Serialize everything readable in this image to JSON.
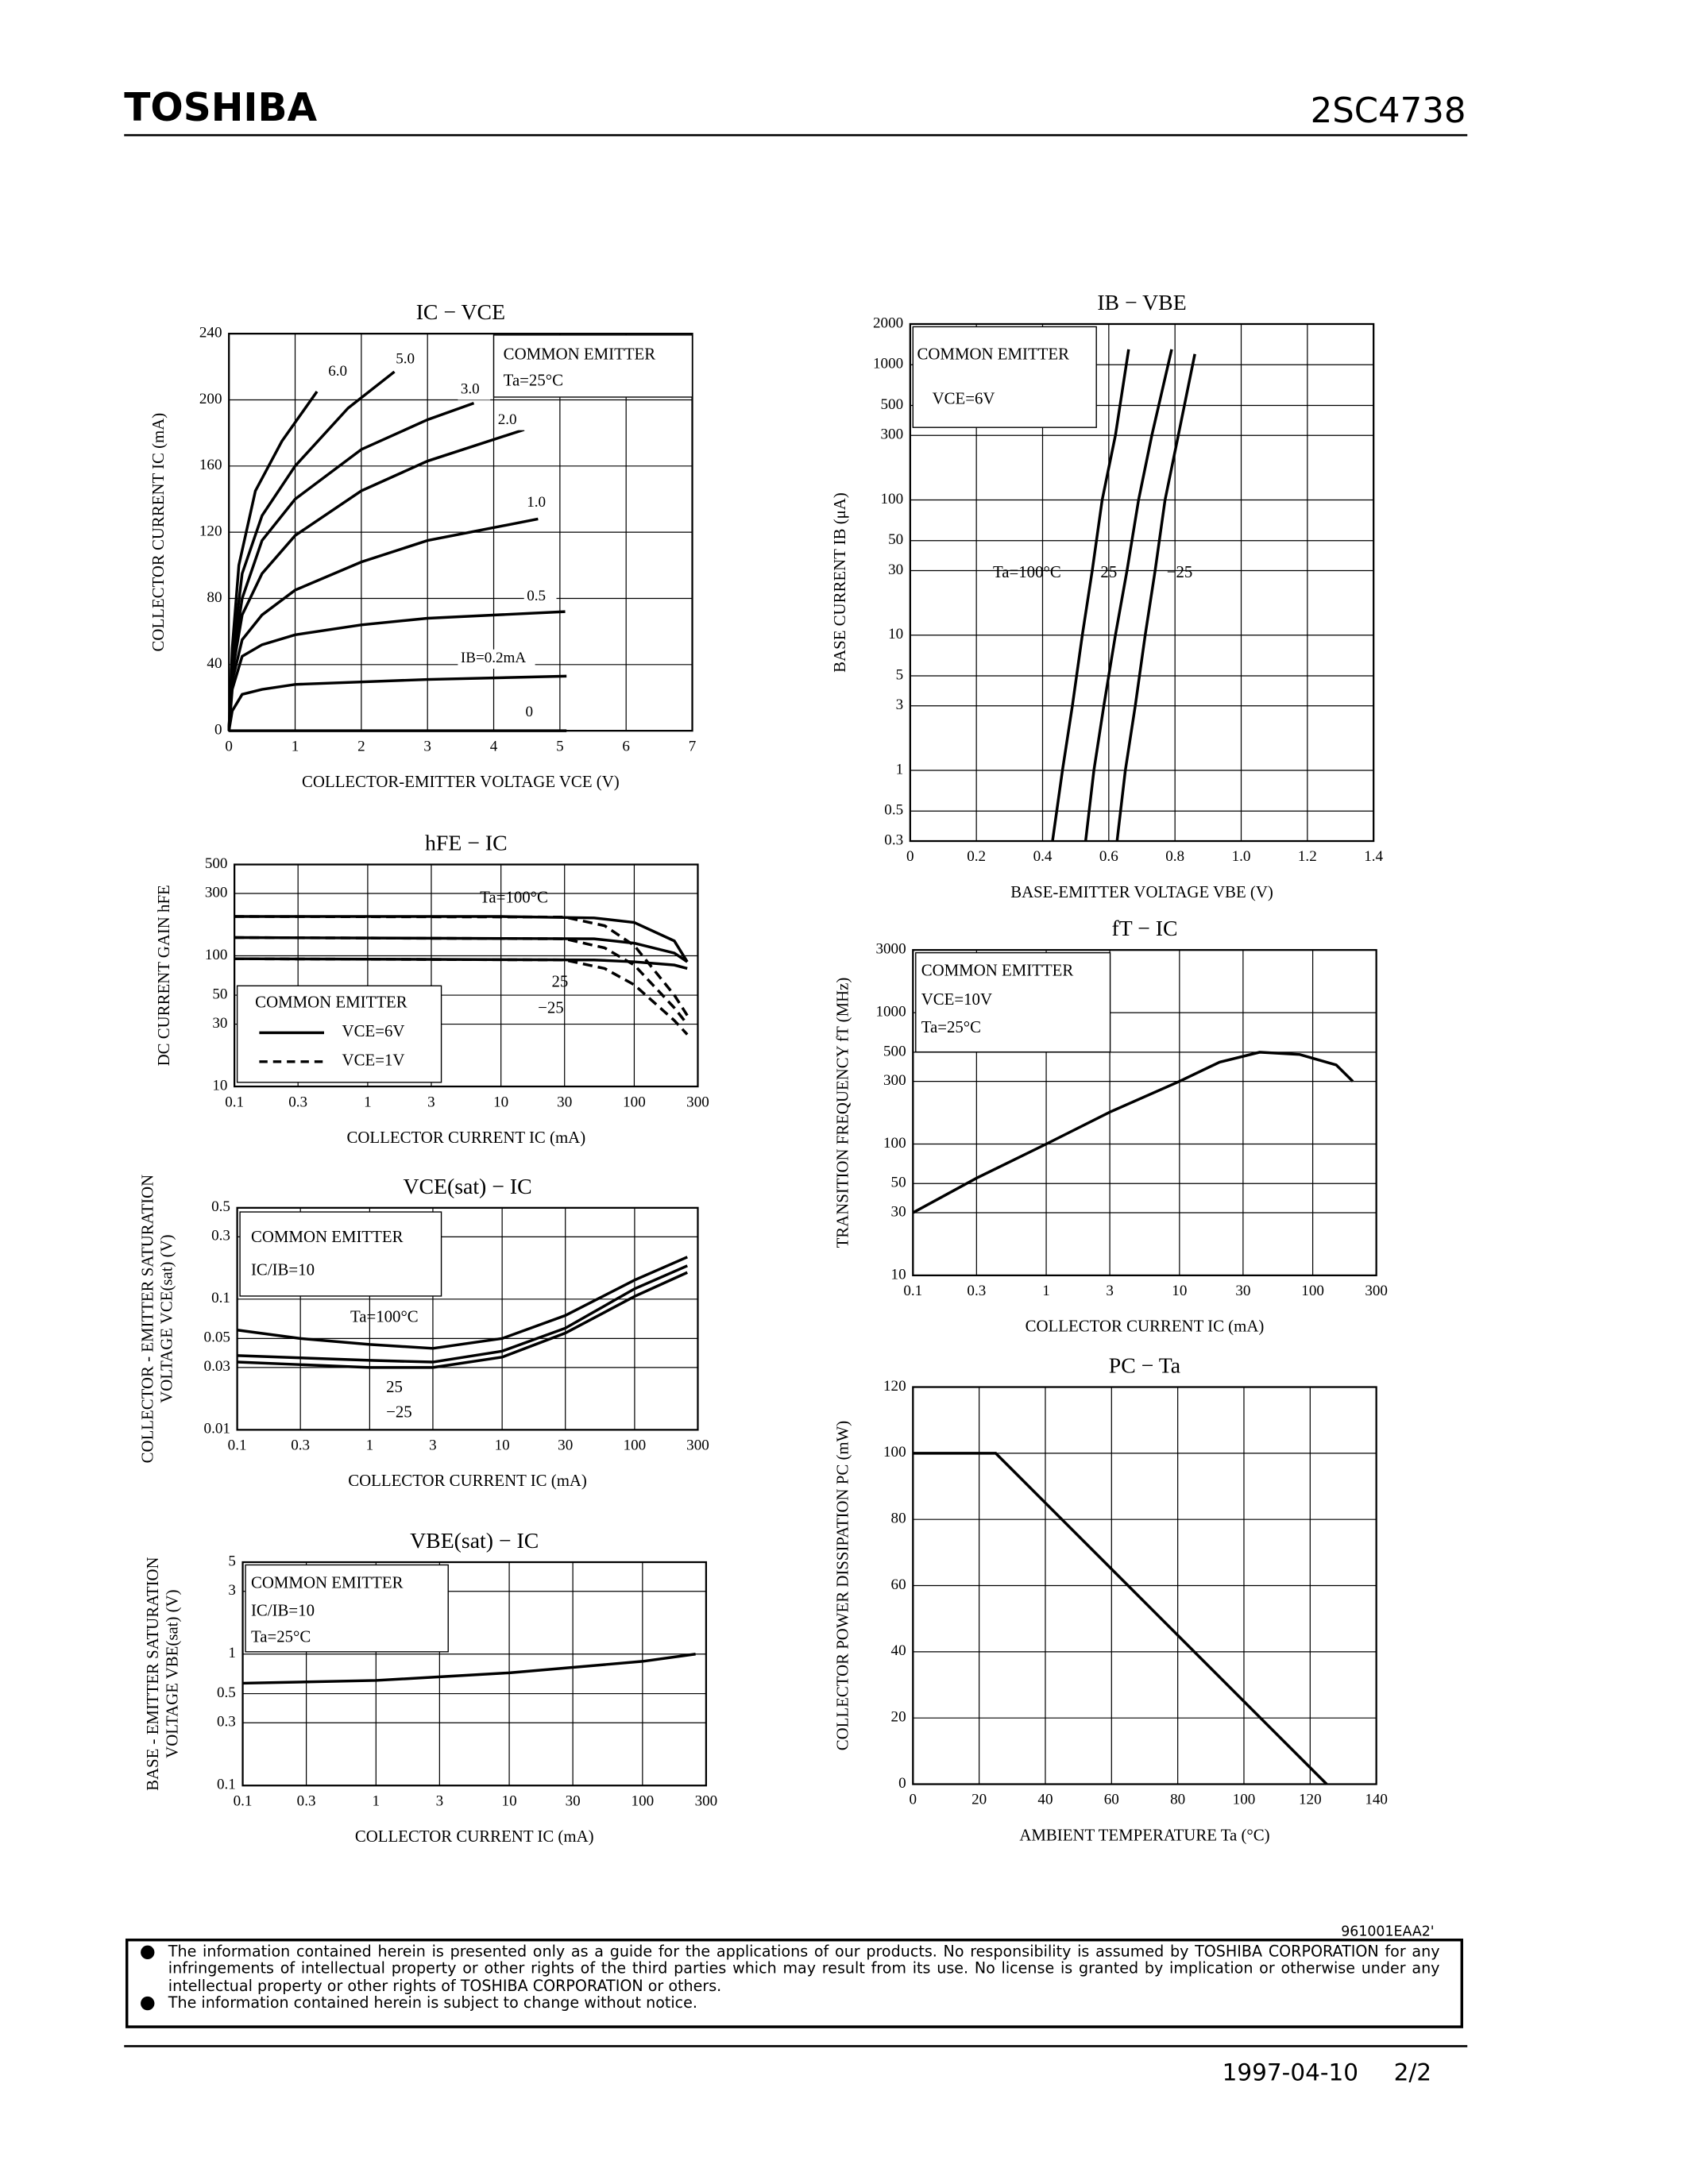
{
  "header": {
    "brand": "TOSHIBA",
    "part": "2SC4738"
  },
  "chart_data": [
    {
      "type": "line",
      "title": "IC − VCE",
      "xlabel": "COLLECTOR-EMITTER VOLTAGE   VCE   (V)",
      "ylabel": [
        "COLLECTOR CURRENT   IC   (mA)"
      ],
      "xlim": [
        0,
        7
      ],
      "ylim": [
        0,
        240
      ],
      "xticks": [
        0,
        1,
        2,
        3,
        4,
        5,
        6,
        7
      ],
      "yticks": [
        0,
        40,
        80,
        120,
        160,
        200,
        240
      ],
      "grid": true,
      "color": "#000000",
      "annotations": [
        "COMMON EMITTER",
        "Ta=25°C"
      ],
      "series": [
        {
          "name": "6.0",
          "x": [
            0,
            0.05,
            0.15,
            0.4,
            0.8,
            1.33
          ],
          "values": [
            0,
            50,
            100,
            145,
            175,
            205
          ]
        },
        {
          "name": "5.0",
          "x": [
            0,
            0.05,
            0.2,
            0.5,
            1,
            1.8,
            2.5
          ],
          "values": [
            0,
            45,
            95,
            130,
            160,
            195,
            217
          ]
        },
        {
          "name": "3.0",
          "x": [
            0,
            0.05,
            0.2,
            0.5,
            1,
            2,
            3,
            3.7
          ],
          "values": [
            0,
            40,
            80,
            115,
            140,
            170,
            188,
            198
          ]
        },
        {
          "name": "2.0",
          "x": [
            0,
            0.05,
            0.2,
            0.5,
            1,
            2,
            3,
            4.46
          ],
          "values": [
            0,
            35,
            70,
            95,
            118,
            145,
            163,
            182
          ]
        },
        {
          "name": "1.0",
          "x": [
            0,
            0.05,
            0.2,
            0.5,
            1,
            2,
            3,
            4.67
          ],
          "values": [
            0,
            30,
            55,
            70,
            85,
            102,
            115,
            128
          ]
        },
        {
          "name": "0.5",
          "x": [
            0,
            0.05,
            0.2,
            0.5,
            1,
            2,
            3,
            5.08
          ],
          "values": [
            0,
            25,
            45,
            52,
            58,
            64,
            68,
            72
          ]
        },
        {
          "name": "IB=0.2mA",
          "x": [
            0,
            0.05,
            0.2,
            0.5,
            1,
            3,
            5.1
          ],
          "values": [
            0,
            12,
            22,
            25,
            28,
            31,
            33
          ]
        },
        {
          "name": "0",
          "x": [
            0,
            5.1
          ],
          "values": [
            0,
            0
          ]
        }
      ]
    },
    {
      "type": "line",
      "title": "hFE − IC",
      "xlabel": "COLLECTOR CURRENT   IC   (mA)",
      "ylabel": [
        "DC CURRENT GAIN  hFE"
      ],
      "xscale": "log",
      "yscale": "log",
      "xlim": [
        0.1,
        300
      ],
      "ylim": [
        10,
        500
      ],
      "xticks": [
        0.1,
        0.3,
        1,
        3,
        10,
        30,
        100,
        300
      ],
      "yticks": [
        10,
        30,
        50,
        100,
        300,
        500
      ],
      "grid": true,
      "color": "#000000",
      "annotations": [
        "Ta=100°C",
        "25",
        "−25",
        "COMMON EMITTER"
      ],
      "legend": [
        {
          "label": "VCE=6V",
          "dash": false
        },
        {
          "label": "VCE=1V",
          "dash": true
        }
      ],
      "series": [
        {
          "dash": false,
          "x": [
            0.1,
            10,
            50,
            100,
            200,
            250
          ],
          "values": [
            200,
            200,
            195,
            180,
            130,
            90
          ]
        },
        {
          "dash": false,
          "x": [
            0.1,
            50,
            100,
            200,
            250
          ],
          "values": [
            138,
            135,
            125,
            105,
            90
          ]
        },
        {
          "dash": false,
          "x": [
            0.1,
            50,
            100,
            200,
            250
          ],
          "values": [
            95,
            93,
            90,
            85,
            80
          ]
        },
        {
          "dash": true,
          "x": [
            0.1,
            30,
            60,
            100,
            200,
            250
          ],
          "values": [
            200,
            198,
            170,
            120,
            50,
            35
          ]
        },
        {
          "dash": true,
          "x": [
            0.1,
            30,
            60,
            100,
            200,
            250
          ],
          "values": [
            138,
            135,
            115,
            85,
            40,
            30
          ]
        },
        {
          "dash": true,
          "x": [
            0.1,
            30,
            60,
            100,
            200,
            250
          ],
          "values": [
            95,
            93,
            80,
            60,
            32,
            25
          ]
        }
      ]
    },
    {
      "type": "line",
      "title": "VCE(sat) − IC",
      "xlabel": "COLLECTOR CURRENT   IC   (mA)",
      "ylabel": [
        "COLLECTOR - EMITTER SATURATION",
        "VOLTAGE   VCE(sat)   (V)"
      ],
      "xscale": "log",
      "yscale": "log",
      "xlim": [
        0.1,
        300
      ],
      "ylim": [
        0.01,
        0.5
      ],
      "xticks": [
        0.1,
        0.3,
        1,
        3,
        10,
        30,
        100,
        300
      ],
      "yticks": [
        0.01,
        0.03,
        0.05,
        0.1,
        0.3,
        0.5
      ],
      "grid": true,
      "color": "#000000",
      "annotations": [
        "COMMON EMITTER",
        "IC/IB=10",
        "Ta=100°C",
        "25",
        "−25"
      ],
      "series": [
        {
          "x": [
            0.1,
            0.3,
            1,
            3,
            10,
            30,
            100,
            250
          ],
          "values": [
            0.058,
            0.05,
            0.045,
            0.042,
            0.05,
            0.075,
            0.14,
            0.21
          ]
        },
        {
          "x": [
            0.1,
            1,
            3,
            10,
            30,
            100,
            250
          ],
          "values": [
            0.037,
            0.034,
            0.033,
            0.04,
            0.06,
            0.12,
            0.18
          ]
        },
        {
          "x": [
            0.1,
            1,
            3,
            10,
            30,
            100,
            250
          ],
          "values": [
            0.033,
            0.03,
            0.03,
            0.036,
            0.055,
            0.105,
            0.16
          ]
        }
      ]
    },
    {
      "type": "line",
      "title": "VBE(sat) − IC",
      "xlabel": "COLLECTOR CURRENT   IC   (mA)",
      "ylabel": [
        "BASE - EMITTER SATURATION",
        "VOLTAGE   VBE(sat)   (V)"
      ],
      "xscale": "log",
      "yscale": "log",
      "xlim": [
        0.1,
        300
      ],
      "ylim": [
        0.1,
        5
      ],
      "xticks": [
        0.1,
        0.3,
        1,
        3,
        10,
        30,
        100,
        300
      ],
      "yticks": [
        0.1,
        0.3,
        0.5,
        1,
        3,
        5
      ],
      "grid": true,
      "color": "#000000",
      "annotations": [
        "COMMON EMITTER",
        "IC/IB=10",
        "Ta=25°C"
      ],
      "series": [
        {
          "x": [
            0.1,
            1,
            10,
            100,
            250
          ],
          "values": [
            0.6,
            0.63,
            0.72,
            0.88,
            1.0
          ]
        }
      ]
    },
    {
      "type": "line",
      "title": "IB − VBE",
      "xlabel": "BASE-EMITTER VOLTAGE   VBE   (V)",
      "ylabel": [
        "BASE CURRENT   IB   (μA)"
      ],
      "yscale": "log",
      "xlim": [
        0,
        1.4
      ],
      "ylim": [
        0.3,
        2000
      ],
      "xticks": [
        0,
        0.2,
        0.4,
        0.6,
        0.8,
        {
          "value": 1,
          "label": "1.0"
        },
        1.2,
        1.4
      ],
      "yticks": [
        0.3,
        0.5,
        1,
        3,
        5,
        10,
        30,
        50,
        100,
        300,
        500,
        1000,
        2000
      ],
      "grid": true,
      "color": "#000000",
      "annotations": [
        "COMMON EMITTER",
        "VCE=6V",
        "Ta=100°C",
        "25",
        "−25"
      ],
      "series": [
        {
          "x": [
            0.43,
            0.46,
            0.49,
            0.52,
            0.55,
            0.58,
            0.62,
            0.66
          ],
          "values": [
            0.3,
            1,
            3,
            10,
            30,
            100,
            300,
            1300
          ]
        },
        {
          "x": [
            0.53,
            0.555,
            0.585,
            0.62,
            0.655,
            0.69,
            0.73,
            0.79
          ],
          "values": [
            0.3,
            1,
            3,
            10,
            30,
            100,
            300,
            1300
          ]
        },
        {
          "x": [
            0.625,
            0.65,
            0.68,
            0.71,
            0.74,
            0.77,
            0.81,
            0.86
          ],
          "values": [
            0.3,
            1,
            3,
            10,
            30,
            100,
            300,
            1200
          ]
        }
      ]
    },
    {
      "type": "line",
      "title": "fT − IC",
      "xlabel": "COLLECTOR CURRENT   IC   (mA)",
      "ylabel": [
        "TRANSITION FREQUENCY   fT   (MHz)"
      ],
      "xscale": "log",
      "yscale": "log",
      "xlim": [
        0.1,
        300
      ],
      "ylim": [
        10,
        3000
      ],
      "xticks": [
        0.1,
        0.3,
        1,
        3,
        10,
        30,
        100,
        300
      ],
      "yticks": [
        10,
        30,
        50,
        100,
        300,
        500,
        1000,
        3000
      ],
      "grid": true,
      "color": "#000000",
      "annotations": [
        "COMMON EMITTER",
        "VCE=10V",
        "Ta=25°C"
      ],
      "series": [
        {
          "x": [
            0.1,
            0.3,
            1,
            3,
            10,
            20,
            40,
            80,
            150,
            200
          ],
          "values": [
            30,
            55,
            100,
            175,
            300,
            420,
            500,
            480,
            400,
            300
          ]
        }
      ]
    },
    {
      "type": "line",
      "title": "PC − Ta",
      "xlabel": "AMBIENT TEMPERATURE   Ta   (°C)",
      "ylabel": [
        "COLLECTOR POWER DISSIPATION   PC   (mW)"
      ],
      "xlim": [
        0,
        140
      ],
      "ylim": [
        0,
        120
      ],
      "xticks": [
        0,
        20,
        40,
        60,
        80,
        100,
        120,
        140
      ],
      "yticks": [
        0,
        20,
        40,
        60,
        80,
        100,
        120
      ],
      "grid": true,
      "color": "#000000",
      "annotations": [],
      "series": [
        {
          "x": [
            0,
            25,
            125
          ],
          "values": [
            100,
            100,
            0
          ]
        }
      ]
    }
  ],
  "footer": {
    "code": "961001EAA2'",
    "notes": [
      "The information contained herein is presented only as a guide for the applications of our products. No responsibility is assumed by TOSHIBA CORPORATION for any infringements of intellectual property or other rights of the third parties which may result from its use. No license is granted by implication or otherwise under any intellectual property or other rights of TOSHIBA CORPORATION or others.",
      "The information contained herein is subject to change without notice."
    ],
    "date": "1997-04-10",
    "page": "2/2"
  }
}
